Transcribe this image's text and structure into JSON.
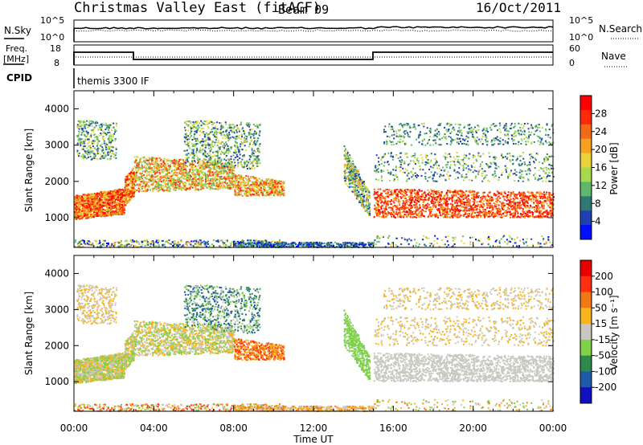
{
  "header": {
    "station": "Christmas Valley East (fitACF)",
    "beam": "Beam 09",
    "date": "16/Oct/2011"
  },
  "strip_panels": {
    "sky_label": "N.Sky",
    "search_label": "N.Search",
    "sky_ticks": [
      "10^5",
      "10^0"
    ],
    "search_ticks": [
      "10^5",
      "10^0"
    ],
    "freq_label_1": "Freq.",
    "freq_label_2": "[MHz]",
    "freq_ticks": [
      "18",
      "8"
    ],
    "nave_label": "Nave",
    "nave_ticks": [
      "60",
      "0"
    ],
    "cpid_label": "CPID",
    "cpid_value": "themis 3300 IF"
  },
  "chart_data": [
    {
      "type": "heatmap",
      "quantity": "Power",
      "ylabel": "Slant Range [km]",
      "ylim": [
        180,
        4500
      ],
      "yticks": [
        "1000",
        "2000",
        "3000",
        "4000"
      ],
      "xlim": [
        0,
        24
      ],
      "colorbar_label": "Power [dB]",
      "colorbar_ticks": [
        "4",
        "8",
        "12",
        "16",
        "20",
        "24",
        "28"
      ],
      "colorbar_colors": [
        "#0010ff",
        "#1e40b0",
        "#2e7a72",
        "#5fb86a",
        "#a6d94d",
        "#e8d43a",
        "#f7a21f",
        "#f26a16",
        "#ff2a0a",
        "#ff0000"
      ],
      "grid": true
    },
    {
      "type": "heatmap",
      "quantity": "Velocity",
      "ylabel": "Slant Range [km]",
      "ylim": [
        180,
        4500
      ],
      "yticks": [
        "1000",
        "2000",
        "3000",
        "4000"
      ],
      "xlim": [
        0,
        24
      ],
      "xticks": [
        "00:00",
        "04:00",
        "08:00",
        "12:00",
        "16:00",
        "20:00",
        "00:00"
      ],
      "xlabel": "Time UT",
      "colorbar_label": "Velocity [m s⁻¹]",
      "colorbar_ticks": [
        "200",
        "100",
        "50",
        "15",
        "-15",
        "-50",
        "-100",
        "-200"
      ],
      "colorbar_colors": [
        "#1010c0",
        "#1e5aa8",
        "#2e8a4a",
        "#7fd04a",
        "#c8c8c0",
        "#f7b51f",
        "#f27a16",
        "#ff3010",
        "#e80000"
      ],
      "grid": true
    }
  ]
}
